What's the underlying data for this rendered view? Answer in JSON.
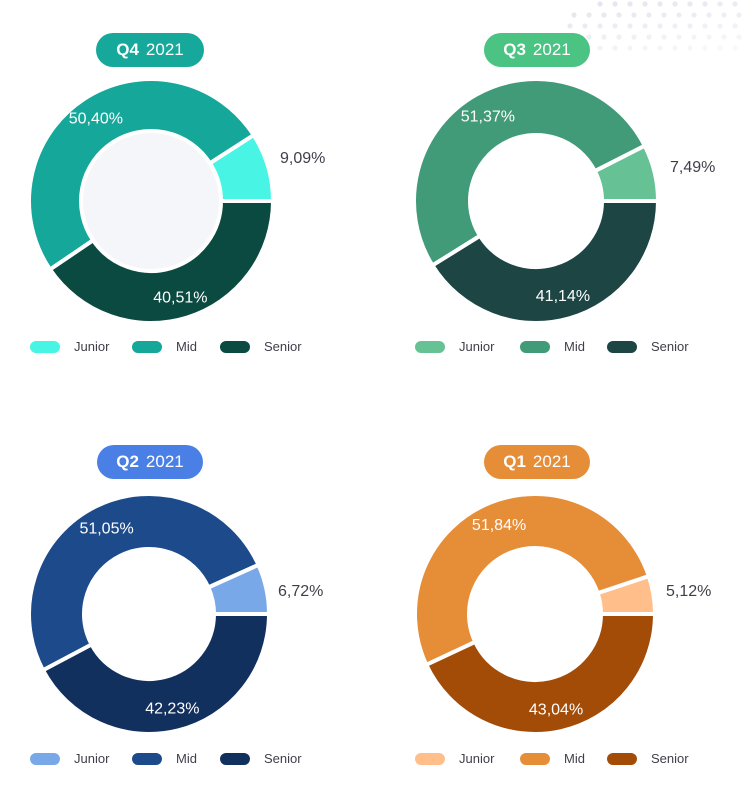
{
  "chart_data": [
    {
      "type": "pie",
      "quarter": "Q4",
      "year": "2021",
      "categories": [
        "Junior",
        "Mid",
        "Senior"
      ],
      "values": [
        9.09,
        50.4,
        40.51
      ],
      "value_labels": [
        "9,09%",
        "50,40%",
        "40,51%"
      ],
      "colors": [
        "#48f4e4",
        "#15a89a",
        "#0a4a40"
      ],
      "hole_color": "#f5f6fa",
      "pill_color": "#16a89a",
      "legend_placement": "bottom"
    },
    {
      "type": "pie",
      "quarter": "Q3",
      "year": "2021",
      "categories": [
        "Junior",
        "Mid",
        "Senior"
      ],
      "values": [
        7.49,
        51.37,
        41.14
      ],
      "value_labels": [
        "7,49%",
        "51,37%",
        "41,14%"
      ],
      "colors": [
        "#66c295",
        "#419a78",
        "#1c4544"
      ],
      "hole_color": "#ffffff",
      "pill_color": "#4bc383",
      "legend_placement": "bottom"
    },
    {
      "type": "pie",
      "quarter": "Q2",
      "year": "2021",
      "categories": [
        "Junior",
        "Mid",
        "Senior"
      ],
      "values": [
        6.72,
        51.05,
        42.23
      ],
      "value_labels": [
        "6,72%",
        "51,05%",
        "42,23%"
      ],
      "colors": [
        "#78a8e8",
        "#1c4a8a",
        "#12305e"
      ],
      "hole_color": "#ffffff",
      "pill_color": "#4a80e6",
      "legend_placement": "bottom"
    },
    {
      "type": "pie",
      "quarter": "Q1",
      "year": "2021",
      "categories": [
        "Junior",
        "Mid",
        "Senior"
      ],
      "values": [
        5.12,
        51.84,
        43.04
      ],
      "value_labels": [
        "5,12%",
        "51,84%",
        "43,04%"
      ],
      "colors": [
        "#ffbe8a",
        "#e68d38",
        "#a24c08"
      ],
      "hole_color": "#ffffff",
      "pill_color": "#e68d38",
      "legend_placement": "bottom"
    }
  ]
}
